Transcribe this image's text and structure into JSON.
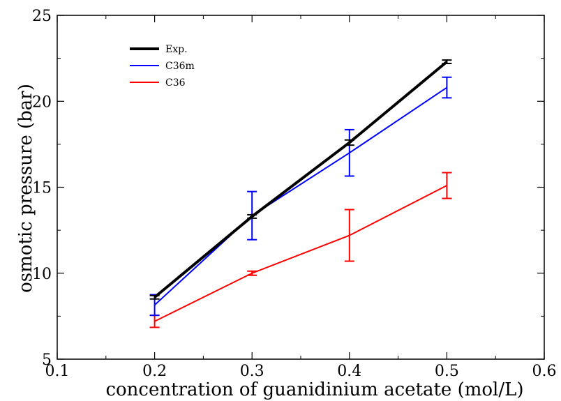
{
  "chart_data": {
    "type": "line",
    "xlabel": "concentration of guanidinium acetate (mol/L)",
    "ylabel": "osmotic pressure (bar)",
    "xlim": [
      0.1,
      0.6
    ],
    "ylim": [
      5,
      25
    ],
    "xticks": [
      "0.1",
      "0.2",
      "0.3",
      "0.4",
      "0.5",
      "0.6"
    ],
    "yticks": [
      "5",
      "10",
      "15",
      "20",
      "25"
    ],
    "grid": false,
    "legend_position": "top-left",
    "series": [
      {
        "name": "Exp.",
        "color": "#000000",
        "x": [
          0.2,
          0.3,
          0.4,
          0.5
        ],
        "y": [
          8.6,
          13.3,
          17.6,
          22.3
        ],
        "err": [
          0.1,
          0.1,
          0.15,
          0.1
        ]
      },
      {
        "name": "C36m",
        "color": "#0000ff",
        "x": [
          0.2,
          0.3,
          0.4,
          0.5
        ],
        "y": [
          8.15,
          13.35,
          17.0,
          20.8
        ],
        "err": [
          0.6,
          1.4,
          1.35,
          0.6
        ]
      },
      {
        "name": "C36",
        "color": "#ff0000",
        "x": [
          0.2,
          0.3,
          0.4,
          0.5
        ],
        "y": [
          7.2,
          10.0,
          12.2,
          15.1
        ],
        "err": [
          0.35,
          0.12,
          1.5,
          0.75
        ]
      }
    ]
  }
}
